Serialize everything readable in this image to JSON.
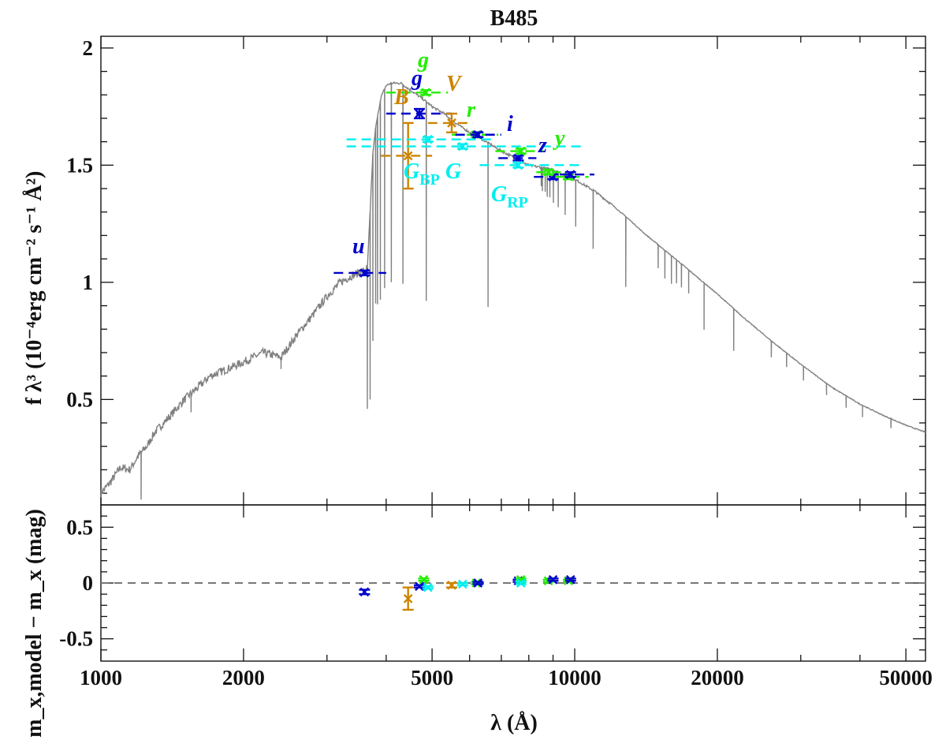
{
  "chart_data": [
    {
      "panel": "top",
      "type": "line",
      "title": "B485",
      "ylabel": "f λ³ (10⁻⁴erg cm⁻² s⁻¹ Å²)",
      "x_scale": "log",
      "xlim": [
        1000,
        55000
      ],
      "ylim": [
        0.05,
        2.05
      ],
      "yticks": [
        0.5,
        1,
        1.5,
        2
      ],
      "ytick_labels": [
        "0.5",
        "1",
        "1.5",
        "2"
      ],
      "model_color": "#808080",
      "model_spectrum": {
        "x": [
          1000,
          1050,
          1100,
          1150,
          1200,
          1250,
          1300,
          1400,
          1500,
          1600,
          1700,
          1800,
          1900,
          2000,
          2200,
          2400,
          2600,
          2800,
          3000,
          3200,
          3400,
          3600,
          3650,
          3700,
          3750,
          3800,
          3900,
          4000,
          4100,
          4200,
          4300,
          4500,
          4800,
          5000,
          5300,
          5600,
          6000,
          6500,
          7000,
          7500,
          8000,
          8500,
          9000,
          10000,
          11000,
          12000,
          13000,
          14000,
          15000,
          17000,
          20000,
          23000,
          26000,
          30000,
          35000,
          40000,
          45000,
          50000,
          55000
        ],
        "y": [
          0.1,
          0.15,
          0.21,
          0.2,
          0.26,
          0.3,
          0.36,
          0.43,
          0.5,
          0.55,
          0.6,
          0.62,
          0.64,
          0.66,
          0.7,
          0.68,
          0.78,
          0.86,
          0.94,
          1.0,
          1.03,
          1.05,
          1.06,
          1.3,
          1.55,
          1.66,
          1.79,
          1.84,
          1.85,
          1.85,
          1.85,
          1.82,
          1.78,
          1.75,
          1.72,
          1.68,
          1.64,
          1.6,
          1.56,
          1.53,
          1.5,
          1.49,
          1.48,
          1.44,
          1.39,
          1.33,
          1.27,
          1.21,
          1.16,
          1.07,
          0.95,
          0.84,
          0.75,
          0.65,
          0.55,
          0.48,
          0.43,
          0.39,
          0.36
        ],
        "absorption_lines": [
          {
            "x": 1216,
            "depth": 0.2
          },
          {
            "x": 1550,
            "depth": 0.08
          },
          {
            "x": 2400,
            "depth": 0.05
          },
          {
            "x": 3650,
            "depth": 0.6
          },
          {
            "x": 3700,
            "depth": 0.8
          },
          {
            "x": 3750,
            "depth": 0.8
          },
          {
            "x": 3800,
            "depth": 0.75
          },
          {
            "x": 3835,
            "depth": 0.8
          },
          {
            "x": 3889,
            "depth": 0.85
          },
          {
            "x": 3970,
            "depth": 0.85
          },
          {
            "x": 4102,
            "depth": 0.85
          },
          {
            "x": 4340,
            "depth": 0.85
          },
          {
            "x": 4861,
            "depth": 0.85
          },
          {
            "x": 6563,
            "depth": 0.7
          },
          {
            "x": 8500,
            "depth": 0.08
          },
          {
            "x": 8545,
            "depth": 0.1
          },
          {
            "x": 8665,
            "depth": 0.1
          },
          {
            "x": 8750,
            "depth": 0.12
          },
          {
            "x": 8863,
            "depth": 0.12
          },
          {
            "x": 9015,
            "depth": 0.14
          },
          {
            "x": 9229,
            "depth": 0.15
          },
          {
            "x": 9546,
            "depth": 0.17
          },
          {
            "x": 10049,
            "depth": 0.2
          },
          {
            "x": 10938,
            "depth": 0.25
          },
          {
            "x": 12818,
            "depth": 0.3
          },
          {
            "x": 15000,
            "depth": 0.1
          },
          {
            "x": 15500,
            "depth": 0.12
          },
          {
            "x": 16000,
            "depth": 0.12
          },
          {
            "x": 16400,
            "depth": 0.1
          },
          {
            "x": 16800,
            "depth": 0.1
          },
          {
            "x": 17400,
            "depth": 0.1
          },
          {
            "x": 18751,
            "depth": 0.2
          },
          {
            "x": 21655,
            "depth": 0.18
          },
          {
            "x": 26000,
            "depth": 0.07
          },
          {
            "x": 28000,
            "depth": 0.06
          },
          {
            "x": 30400,
            "depth": 0.06
          },
          {
            "x": 34000,
            "depth": 0.05
          },
          {
            "x": 37400,
            "depth": 0.05
          },
          {
            "x": 40500,
            "depth": 0.05
          },
          {
            "x": 46500,
            "depth": 0.04
          }
        ]
      },
      "photometry": [
        {
          "name": "u",
          "x": 3600,
          "y": 1.04,
          "xmin": 3100,
          "xmax": 4000,
          "yerr": 0.01,
          "color": "#0000cc"
        },
        {
          "name": "B",
          "x": 4450,
          "y": 1.54,
          "xmin": 3900,
          "xmax": 5000,
          "yerr": 0.14,
          "color": "#cc8400"
        },
        {
          "name": "g",
          "x": 4700,
          "y": 1.72,
          "xmin": 4000,
          "xmax": 5500,
          "yerr": 0.02,
          "color": "#0000cc"
        },
        {
          "name": "g",
          "x": 4850,
          "y": 1.81,
          "xmin": 4000,
          "xmax": 5400,
          "yerr": 0.01,
          "color": "#22ee00"
        },
        {
          "name": "V",
          "x": 5500,
          "y": 1.68,
          "xmin": 4900,
          "xmax": 6100,
          "yerr": 0.04,
          "color": "#cc8400"
        },
        {
          "name": "r",
          "x": 6200,
          "y": 1.63,
          "xmin": 5500,
          "xmax": 6900,
          "yerr": 0.01,
          "color": "#22ee00"
        },
        {
          "name": "r",
          "x": 6250,
          "y": 1.63,
          "xmin": 5600,
          "xmax": 7000,
          "yerr": 0.01,
          "color": "#0000cc"
        },
        {
          "name": "i",
          "x": 7600,
          "y": 1.53,
          "xmin": 6900,
          "xmax": 8300,
          "yerr": 0.01,
          "color": "#0000cc"
        },
        {
          "name": "i",
          "x": 7700,
          "y": 1.56,
          "xmin": 6800,
          "xmax": 8600,
          "yerr": 0.01,
          "color": "#22ee00"
        },
        {
          "name": "z",
          "x": 9000,
          "y": 1.45,
          "xmin": 8200,
          "xmax": 10000,
          "yerr": 0.01,
          "color": "#0000cc"
        },
        {
          "name": "z",
          "x": 8800,
          "y": 1.47,
          "xmin": 8300,
          "xmax": 9500,
          "yerr": 0.01,
          "color": "#22ee00"
        },
        {
          "name": "y",
          "x": 9700,
          "y": 1.45,
          "xmin": 9100,
          "xmax": 10700,
          "yerr": 0.01,
          "color": "#22ee00"
        },
        {
          "name": "y",
          "x": 9800,
          "y": 1.46,
          "xmin": 9300,
          "xmax": 11000,
          "yerr": 0.01,
          "color": "#0000cc"
        },
        {
          "name": "G_BP",
          "x": 4900,
          "y": 1.61,
          "xmin": 3300,
          "xmax": 6700,
          "yerr": 0.01,
          "color": "#00eeee"
        },
        {
          "name": "G",
          "x": 5800,
          "y": 1.58,
          "xmin": 3300,
          "xmax": 10500,
          "yerr": 0.01,
          "color": "#00eeee"
        },
        {
          "name": "G_RP",
          "x": 7600,
          "y": 1.5,
          "xmin": 6300,
          "xmax": 10300,
          "yerr": 0.01,
          "color": "#00eeee"
        }
      ],
      "labels": [
        {
          "text": "u",
          "color": "#0000cc"
        },
        {
          "text": "B",
          "color": "#cc8400"
        },
        {
          "text": "g",
          "color": "#0000cc"
        },
        {
          "text": "g",
          "color": "#22ee00"
        },
        {
          "text": "V",
          "color": "#cc8400"
        },
        {
          "text": "r",
          "color": "#22ee00"
        },
        {
          "text": "i",
          "color": "#0000cc"
        },
        {
          "text": "z",
          "color": "#0000cc"
        },
        {
          "text": "y",
          "color": "#22ee00"
        },
        {
          "text": "G",
          "sub": "BP",
          "color": "#00eeee"
        },
        {
          "text": "G",
          "sub": "",
          "color": "#00eeee"
        },
        {
          "text": "G",
          "sub": "RP",
          "color": "#00eeee"
        }
      ]
    },
    {
      "panel": "bottom",
      "type": "scatter",
      "xlabel": "λ (Å)",
      "ylabel": "m_x,model − m_x (mag)",
      "x_scale": "log",
      "xlim": [
        1000,
        55000
      ],
      "ylim": [
        -0.7,
        0.7
      ],
      "xticks": [
        1000,
        2000,
        5000,
        10000,
        20000,
        50000
      ],
      "xtick_labels": [
        "1000",
        "2000",
        "5000",
        "10000",
        "20000",
        "50000"
      ],
      "yticks": [
        -0.5,
        0,
        0.5
      ],
      "ytick_labels": [
        "-0.5",
        "0",
        "0.5"
      ],
      "zero_line": true,
      "residuals": [
        {
          "name": "u",
          "x": 3600,
          "y": -0.08,
          "yerr": 0.02,
          "color": "#0000cc"
        },
        {
          "name": "B",
          "x": 4450,
          "y": -0.14,
          "yerr": 0.1,
          "color": "#cc8400"
        },
        {
          "name": "g",
          "x": 4700,
          "y": -0.03,
          "yerr": 0.01,
          "color": "#0000cc"
        },
        {
          "name": "g",
          "x": 4800,
          "y": 0.03,
          "yerr": 0.01,
          "color": "#22ee00"
        },
        {
          "name": "G_BP",
          "x": 4900,
          "y": -0.04,
          "yerr": 0.01,
          "color": "#00eeee"
        },
        {
          "name": "V",
          "x": 5500,
          "y": -0.02,
          "yerr": 0.02,
          "color": "#cc8400"
        },
        {
          "name": "G",
          "x": 5800,
          "y": -0.01,
          "yerr": 0.01,
          "color": "#00eeee"
        },
        {
          "name": "r",
          "x": 6200,
          "y": 0.0,
          "yerr": 0.01,
          "color": "#22ee00"
        },
        {
          "name": "r",
          "x": 6250,
          "y": 0.0,
          "yerr": 0.01,
          "color": "#0000cc"
        },
        {
          "name": "i",
          "x": 7600,
          "y": 0.02,
          "yerr": 0.01,
          "color": "#0000cc"
        },
        {
          "name": "i",
          "x": 7700,
          "y": 0.03,
          "yerr": 0.01,
          "color": "#22ee00"
        },
        {
          "name": "G_RP",
          "x": 7700,
          "y": 0.0,
          "yerr": 0.01,
          "color": "#00eeee"
        },
        {
          "name": "z",
          "x": 8800,
          "y": 0.02,
          "yerr": 0.01,
          "color": "#22ee00"
        },
        {
          "name": "z",
          "x": 9000,
          "y": 0.03,
          "yerr": 0.01,
          "color": "#0000cc"
        },
        {
          "name": "y",
          "x": 9700,
          "y": 0.02,
          "yerr": 0.01,
          "color": "#22ee00"
        },
        {
          "name": "y",
          "x": 9800,
          "y": 0.03,
          "yerr": 0.01,
          "color": "#0000cc"
        }
      ]
    }
  ]
}
